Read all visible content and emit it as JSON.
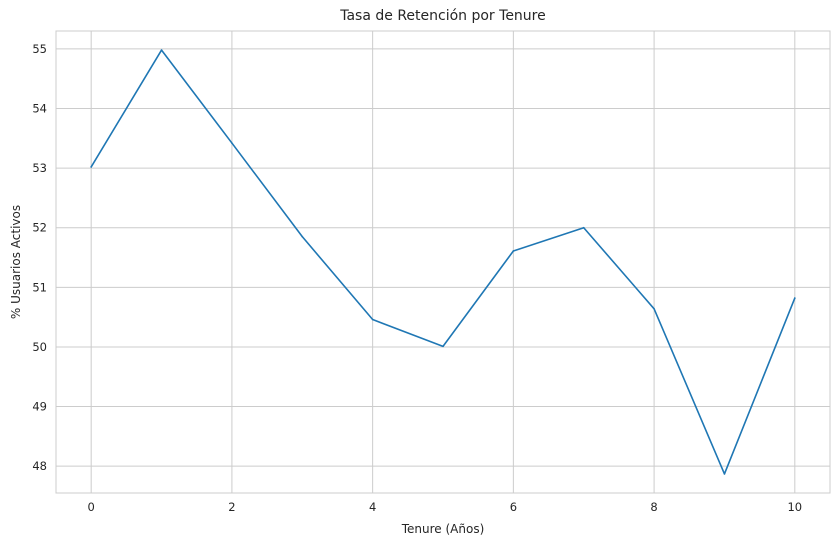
{
  "chart_data": {
    "type": "line",
    "title": "Tasa de Retención por Tenure",
    "xlabel": "Tenure (Años)",
    "ylabel": "% Usuarios Activos",
    "xlim": [
      -0.5,
      10.5
    ],
    "ylim": [
      47.55,
      55.3
    ],
    "xticks": [
      0,
      2,
      4,
      6,
      8,
      10
    ],
    "yticks": [
      48,
      49,
      50,
      51,
      52,
      53,
      54,
      55
    ],
    "grid": true,
    "legend": "none",
    "series": [
      {
        "color": "#1f77b4",
        "x": [
          0,
          1,
          2,
          3,
          4,
          5,
          6,
          7,
          8,
          9,
          10
        ],
        "y": [
          53.02,
          54.98,
          53.42,
          51.85,
          50.46,
          50.01,
          51.61,
          52.0,
          50.64,
          47.87,
          50.82
        ]
      }
    ]
  }
}
